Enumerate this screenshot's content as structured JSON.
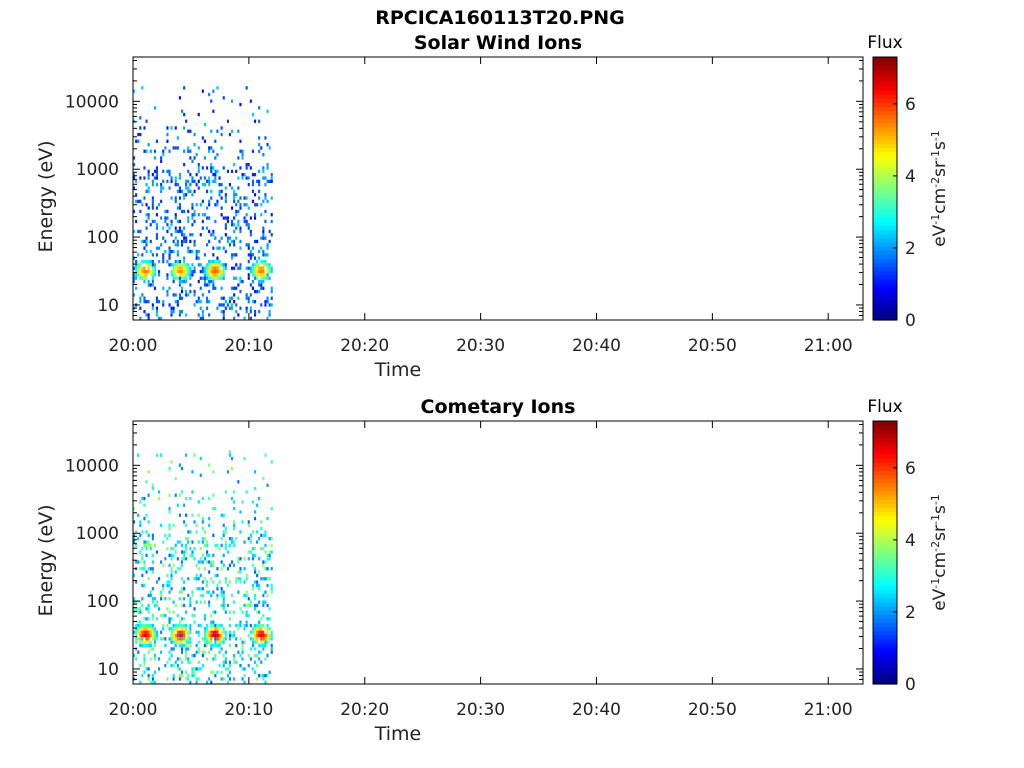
{
  "figure_title": "RPCICA160113T20.PNG",
  "chart_data": [
    {
      "type": "heatmap",
      "title": "Solar Wind Ions",
      "xlabel": "Time",
      "ylabel": "Energy (eV)",
      "y_scale": "log",
      "y_range_eV": [
        6,
        45000
      ],
      "y_ticks": [
        10,
        100,
        1000,
        10000
      ],
      "y_tick_labels": [
        "10",
        "100",
        "1000",
        "10000"
      ],
      "x_range": [
        "20:00",
        "21:03"
      ],
      "x_ticks": [
        "20:00",
        "20:10",
        "20:20",
        "20:30",
        "20:40",
        "20:50",
        "21:00"
      ],
      "data_time_range": [
        "20:00",
        "20:12"
      ],
      "colorbar": {
        "title": "Flux",
        "unit": "eV-1cm-2sr-1s-1",
        "range": [
          0,
          7.3
        ],
        "ticks": [
          "0",
          "2",
          "4",
          "6"
        ]
      },
      "bursts": [
        {
          "time": "20:01",
          "peak_energy_eV": 30,
          "peak_flux": 5.6
        },
        {
          "time": "20:04",
          "peak_energy_eV": 30,
          "peak_flux": 5.4
        },
        {
          "time": "20:07",
          "peak_energy_eV": 30,
          "peak_flux": 5.8
        },
        {
          "time": "20:11",
          "peak_energy_eV": 30,
          "peak_flux": 5.6
        }
      ],
      "scattered_flux": 1.6,
      "grid": false
    },
    {
      "type": "heatmap",
      "title": "Cometary Ions",
      "xlabel": "Time",
      "ylabel": "Energy (eV)",
      "y_scale": "log",
      "y_range_eV": [
        6,
        45000
      ],
      "y_ticks": [
        10,
        100,
        1000,
        10000
      ],
      "y_tick_labels": [
        "10",
        "100",
        "1000",
        "10000"
      ],
      "x_range": [
        "20:00",
        "21:03"
      ],
      "x_ticks": [
        "20:00",
        "20:10",
        "20:20",
        "20:30",
        "20:40",
        "20:50",
        "21:00"
      ],
      "data_time_range": [
        "20:00",
        "20:12"
      ],
      "colorbar": {
        "title": "Flux",
        "unit": "eV-1cm-2sr-1s-1",
        "range": [
          0,
          7.3
        ],
        "ticks": [
          "0",
          "2",
          "4",
          "6"
        ]
      },
      "bursts": [
        {
          "time": "20:01",
          "peak_energy_eV": 30,
          "peak_flux": 6.6
        },
        {
          "time": "20:04",
          "peak_energy_eV": 30,
          "peak_flux": 6.4
        },
        {
          "time": "20:07",
          "peak_energy_eV": 30,
          "peak_flux": 6.8
        },
        {
          "time": "20:11",
          "peak_energy_eV": 30,
          "peak_flux": 6.6
        }
      ],
      "scattered_flux": 2.6,
      "grid": false
    }
  ]
}
